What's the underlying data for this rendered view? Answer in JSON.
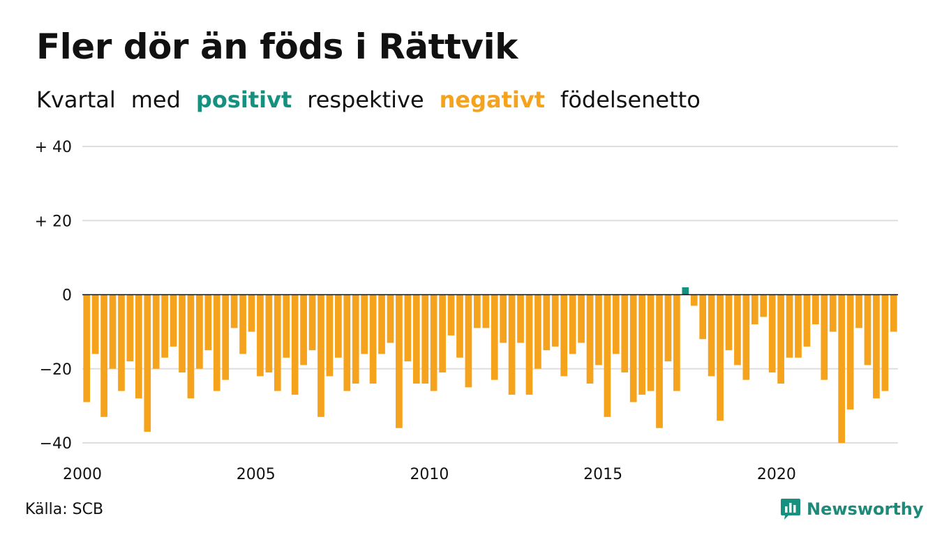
{
  "colors": {
    "positive": "#17917f",
    "negative": "#f5a21d",
    "grid": "#dedede",
    "zero_line": "#111111",
    "brand": "#1e8a7a"
  },
  "header": {
    "title": "Fler dör än föds i Rättvik",
    "subtitle": {
      "part1": "Kvartal",
      "part2": "med",
      "positive_word": "positivt",
      "part3": "respektive",
      "negative_word": "negativt",
      "part4": "födelsenetto"
    }
  },
  "footer": {
    "source": "Källa: SCB",
    "brand": "Newsworthy",
    "brand_icon": "newsworthy-logo-icon"
  },
  "chart_data": {
    "type": "bar",
    "title": "Fler dör än föds i Rättvik",
    "xlabel": "",
    "ylabel": "",
    "ylim": [
      -40,
      40
    ],
    "yticks": [
      {
        "value": 40,
        "label": "+ 40"
      },
      {
        "value": 20,
        "label": "+ 20"
      },
      {
        "value": 0,
        "label": "0"
      },
      {
        "value": -20,
        "label": "−20"
      },
      {
        "value": -40,
        "label": "−40"
      }
    ],
    "xticks": [
      {
        "label": "2000",
        "quarter_index": 0
      },
      {
        "label": "2005",
        "quarter_index": 20
      },
      {
        "label": "2010",
        "quarter_index": 40
      },
      {
        "label": "2015",
        "quarter_index": 60
      },
      {
        "label": "2020",
        "quarter_index": 80
      }
    ],
    "first_quarter": "2000 Q1",
    "grid": true,
    "values": [
      -29,
      -16,
      -33,
      -20,
      -26,
      -18,
      -28,
      -37,
      -20,
      -17,
      -14,
      -21,
      -28,
      -20,
      -15,
      -26,
      -23,
      -9,
      -16,
      -10,
      -22,
      -21,
      -26,
      -17,
      -27,
      -19,
      -15,
      -33,
      -22,
      -17,
      -26,
      -24,
      -16,
      -24,
      -16,
      -13,
      -36,
      -18,
      -24,
      -24,
      -26,
      -21,
      -11,
      -17,
      -25,
      -9,
      -9,
      -23,
      -13,
      -27,
      -13,
      -27,
      -20,
      -15,
      -14,
      -22,
      -16,
      -13,
      -24,
      -19,
      -33,
      -16,
      -21,
      -29,
      -27,
      -26,
      -36,
      -18,
      -26,
      2,
      -3,
      -12,
      -22,
      -34,
      -15,
      -19,
      -23,
      -8,
      -6,
      -21,
      -24,
      -17,
      -17,
      -14,
      -8,
      -23,
      -10,
      -40,
      -31,
      -9,
      -19,
      -28,
      -26,
      -10
    ]
  }
}
